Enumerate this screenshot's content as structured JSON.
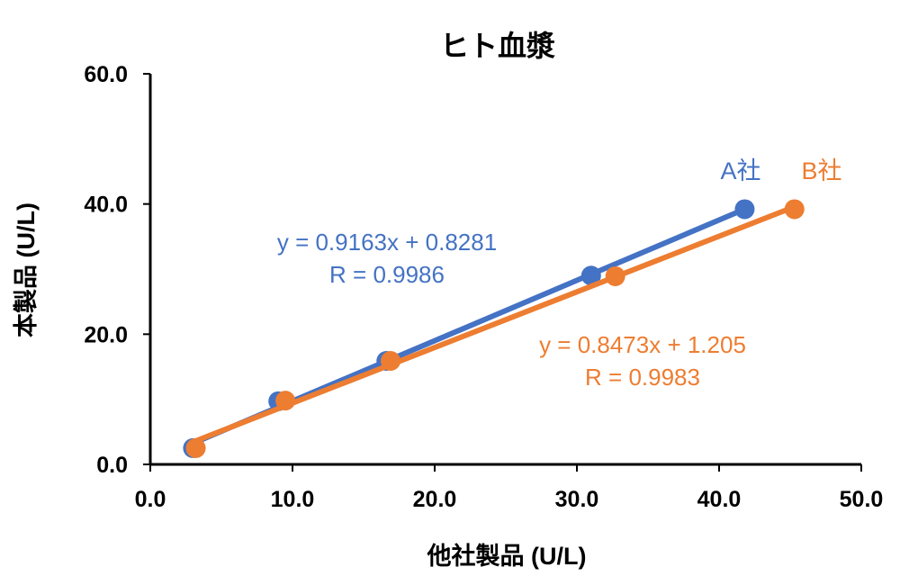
{
  "chart_data": {
    "type": "scatter",
    "title": "ヒト血漿",
    "xlabel": "他社製品 (U/L)",
    "ylabel": "本製品 (U/L)",
    "xlim": [
      0,
      50
    ],
    "ylim": [
      0,
      60
    ],
    "x_ticks": [
      "0.0",
      "10.0",
      "20.0",
      "30.0",
      "40.0",
      "50.0"
    ],
    "y_ticks": [
      "0.0",
      "20.0",
      "40.0",
      "60.0"
    ],
    "grid": false,
    "series": [
      {
        "name": "A社",
        "color": "#4472C4",
        "x": [
          3.0,
          9.0,
          16.6,
          31.0,
          41.8
        ],
        "y": [
          2.5,
          9.7,
          15.9,
          29.0,
          39.2
        ],
        "equation": "y = 0.9163x + 0.8281",
        "r": "R = 0.9986"
      },
      {
        "name": "B社",
        "color": "#ED7D31",
        "x": [
          3.2,
          9.5,
          16.9,
          32.7,
          45.3
        ],
        "y": [
          2.5,
          9.8,
          15.9,
          28.9,
          39.2
        ],
        "equation": "y = 0.8473x + 1.205",
        "r": "R = 0.9983"
      }
    ]
  }
}
